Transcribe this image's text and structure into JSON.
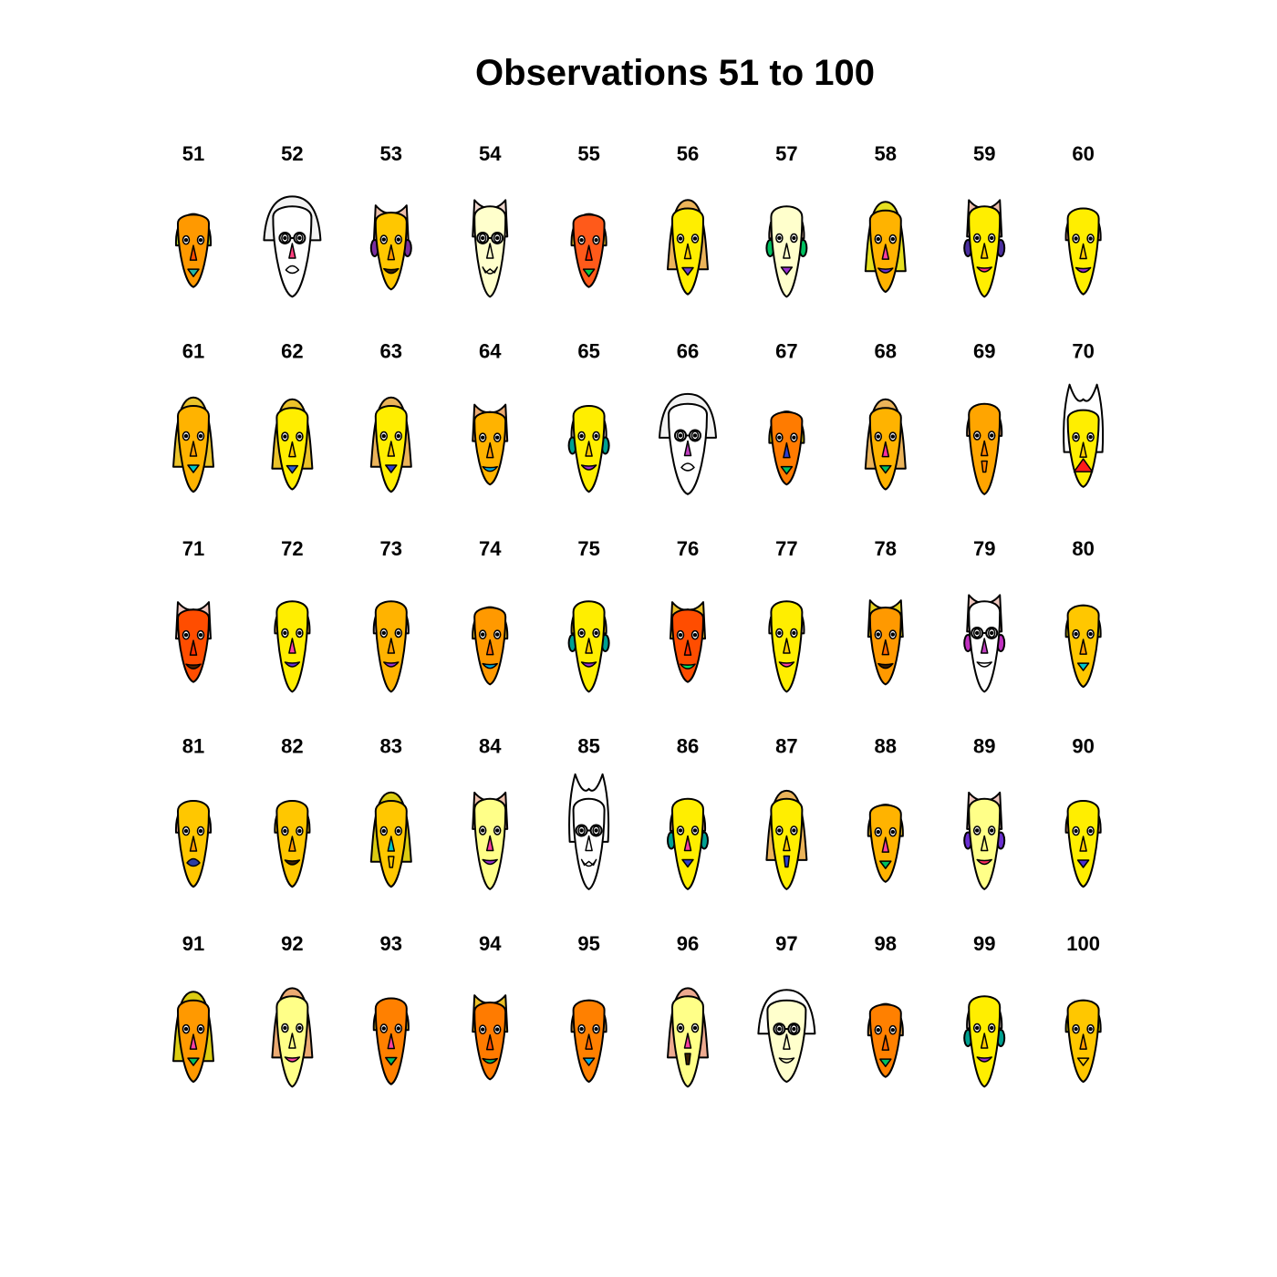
{
  "chart_data": {
    "type": "chernoff_faces",
    "title": "Observations 51 to 100",
    "columns": 10,
    "faces": [
      {
        "label": "51",
        "hair": "#b7d52a",
        "face": "#ff9900",
        "hair_style": "round",
        "head_h": 0.8,
        "nose": "#ff4d00",
        "mouth": "#22b8a8",
        "mouth_type": "tri",
        "glasses": false,
        "ears": false
      },
      {
        "label": "52",
        "hair": "#f2f2f2",
        "face": "#ffffff",
        "hair_style": "wide",
        "head_h": 1.0,
        "nose": "#ff3f7f",
        "mouth": "#ffffff",
        "mouth_type": "oval",
        "glasses": true,
        "ears": false
      },
      {
        "label": "53",
        "hair": "#edc0ac",
        "face": "#ffc700",
        "hair_style": "spiky",
        "head_h": 0.85,
        "nose": "#ff9900",
        "mouth": "#3a1f00",
        "mouth_type": "smile",
        "glasses": false,
        "ears": true,
        "ear": "#7b2fa0"
      },
      {
        "label": "54",
        "hair": "#f0d8d0",
        "face": "#ffffcc",
        "hair_style": "spiky",
        "head_h": 1.0,
        "nose": "#ffffcc",
        "mouth": "#ffffcc",
        "mouth_type": "teeth",
        "glasses": true,
        "ears": false
      },
      {
        "label": "55",
        "hair": "#ebbf27",
        "face": "#ff5a1a",
        "hair_style": "round",
        "head_h": 0.8,
        "nose": "#ff2e00",
        "mouth": "#00cc44",
        "mouth_type": "tri",
        "glasses": false,
        "ears": false
      },
      {
        "label": "56",
        "hair": "#ebb45a",
        "face": "#ffee00",
        "hair_style": "long",
        "head_h": 0.95,
        "nose": "#ffcc00",
        "mouth": "#6a40d0",
        "mouth_type": "tri",
        "glasses": false,
        "ears": false
      },
      {
        "label": "57",
        "hair": "#edc0ac",
        "face": "#ffffcc",
        "hair_style": "round",
        "head_h": 1.0,
        "nose": "#ffffcc",
        "mouth": "#9a2fd0",
        "mouth_type": "tri",
        "glasses": false,
        "ears": true,
        "ear": "#00c060"
      },
      {
        "label": "58",
        "hair": "#e6e020",
        "face": "#ffb300",
        "hair_style": "long",
        "head_h": 0.9,
        "nose": "#ff3f9f",
        "mouth": "#6a2fd0",
        "mouth_type": "smile",
        "glasses": false,
        "ears": false
      },
      {
        "label": "59",
        "hair": "#edc0ac",
        "face": "#ffee00",
        "hair_style": "spiky",
        "head_h": 1.0,
        "nose": "#ffc700",
        "mouth": "#ff2e80",
        "mouth_type": "smile",
        "glasses": false,
        "ears": true,
        "ear": "#4b2fa0"
      },
      {
        "label": "60",
        "hair": "#edaa90",
        "face": "#ffee00",
        "hair_style": "round",
        "head_h": 0.95,
        "nose": "#ffc700",
        "mouth": "#9a2fd0",
        "mouth_type": "smile",
        "glasses": false,
        "ears": false
      },
      {
        "label": "61",
        "hair": "#ebc32a",
        "face": "#ffb300",
        "hair_style": "long",
        "head_h": 0.95,
        "nose": "#ff9900",
        "mouth": "#00c8c8",
        "mouth_type": "tri",
        "glasses": false,
        "ears": false
      },
      {
        "label": "62",
        "hair": "#ebc32a",
        "face": "#ffee00",
        "hair_style": "long",
        "head_h": 0.9,
        "nose": "#ffc700",
        "mouth": "#2e5fd0",
        "mouth_type": "tri",
        "glasses": false,
        "ears": false
      },
      {
        "label": "63",
        "hair": "#ebb45a",
        "face": "#ffee00",
        "hair_style": "long",
        "head_h": 0.95,
        "nose": "#ffc700",
        "mouth": "#2e3fd0",
        "mouth_type": "tri",
        "glasses": false,
        "ears": false
      },
      {
        "label": "64",
        "hair": "#ebaa72",
        "face": "#ffb300",
        "hair_style": "spiky",
        "head_h": 0.8,
        "nose": "#ff9900",
        "mouth": "#00b0e0",
        "mouth_type": "smile",
        "glasses": false,
        "ears": false
      },
      {
        "label": "65",
        "hair": "#f0d8d0",
        "face": "#ffee00",
        "hair_style": "round",
        "head_h": 0.95,
        "nose": "#ffc700",
        "mouth": "#9a2fd0",
        "mouth_type": "smile",
        "glasses": false,
        "ears": true,
        "ear": "#00a090"
      },
      {
        "label": "66",
        "hair": "#f2f2f2",
        "face": "#ffffff",
        "hair_style": "wide",
        "head_h": 1.0,
        "nose": "#c03fc0",
        "mouth": "#ffffff",
        "mouth_type": "oval",
        "glasses": true,
        "ears": false
      },
      {
        "label": "67",
        "hair": "#dccc12",
        "face": "#ff7b00",
        "hair_style": "round",
        "head_h": 0.8,
        "nose": "#2e3fd0",
        "mouth": "#00c060",
        "mouth_type": "tri",
        "glasses": false,
        "ears": false
      },
      {
        "label": "68",
        "hair": "#ebb45a",
        "face": "#ffb300",
        "hair_style": "long",
        "head_h": 0.9,
        "nose": "#ff2e9f",
        "mouth": "#00c060",
        "mouth_type": "tri",
        "glasses": false,
        "ears": false
      },
      {
        "label": "69",
        "hair": "#ebaa72",
        "face": "#ffa500",
        "hair_style": "round",
        "head_h": 1.0,
        "nose": "#ff8000",
        "mouth": "#ff8000",
        "mouth_type": "line",
        "glasses": false,
        "ears": false
      },
      {
        "label": "70",
        "hair": "#ffffff",
        "face": "#ffee00",
        "hair_style": "horns",
        "head_h": 0.85,
        "nose": "#ffcc00",
        "mouth": "#ff1a1a",
        "mouth_type": "bigtri",
        "glasses": false,
        "ears": false
      },
      {
        "label": "71",
        "hair": "#f0c8c0",
        "face": "#ff4d00",
        "hair_style": "spiky",
        "head_h": 0.8,
        "nose": "#ff2e00",
        "mouth": "#4b1f00",
        "mouth_type": "smile",
        "glasses": false,
        "ears": false
      },
      {
        "label": "72",
        "hair": "#ebb45a",
        "face": "#ffee00",
        "hair_style": "round",
        "head_h": 1.0,
        "nose": "#ff40a0",
        "mouth": "#6a2fd0",
        "mouth_type": "smile",
        "glasses": false,
        "ears": false
      },
      {
        "label": "73",
        "hair": "#f0d8d0",
        "face": "#ffb300",
        "hair_style": "round",
        "head_h": 1.0,
        "nose": "#ff9900",
        "mouth": "#9a2fd0",
        "mouth_type": "smile",
        "glasses": false,
        "ears": false
      },
      {
        "label": "74",
        "hair": "#ebbf27",
        "face": "#ff9900",
        "hair_style": "round",
        "head_h": 0.85,
        "nose": "#ff6600",
        "mouth": "#00b0e0",
        "mouth_type": "smile",
        "glasses": false,
        "ears": false
      },
      {
        "label": "75",
        "hair": "#ebbf27",
        "face": "#ffee00",
        "hair_style": "round",
        "head_h": 1.0,
        "nose": "#ffc700",
        "mouth": "#9a2fd0",
        "mouth_type": "smile",
        "glasses": false,
        "ears": true,
        "ear": "#00a090"
      },
      {
        "label": "76",
        "hair": "#ebbf27",
        "face": "#ff4d00",
        "hair_style": "spiky",
        "head_h": 0.8,
        "nose": "#ff2e00",
        "mouth": "#00e060",
        "mouth_type": "smile",
        "glasses": false,
        "ears": false
      },
      {
        "label": "77",
        "hair": "#f0d8d0",
        "face": "#ffee00",
        "hair_style": "round",
        "head_h": 1.0,
        "nose": "#ffc700",
        "mouth": "#ff40a0",
        "mouth_type": "smile",
        "glasses": false,
        "ears": false
      },
      {
        "label": "78",
        "hair": "#e6d020",
        "face": "#ff9900",
        "hair_style": "spiky",
        "head_h": 0.85,
        "nose": "#ff6600",
        "mouth": "#3a1f00",
        "mouth_type": "smile",
        "glasses": false,
        "ears": false
      },
      {
        "label": "79",
        "hair": "#f0c8c0",
        "face": "#ffffff",
        "hair_style": "spiky",
        "head_h": 1.0,
        "nose": "#c03fc0",
        "mouth": "#ffffff",
        "mouth_type": "smile",
        "glasses": true,
        "ears": true,
        "ear": "#c030c0"
      },
      {
        "label": "80",
        "hair": "#dccc12",
        "face": "#ffc700",
        "hair_style": "round",
        "head_h": 0.9,
        "nose": "#ff9900",
        "mouth": "#00c8c8",
        "mouth_type": "tri",
        "glasses": false,
        "ears": false
      },
      {
        "label": "81",
        "hair": "#edaa90",
        "face": "#ffc700",
        "hair_style": "round",
        "head_h": 0.95,
        "nose": "#ff9900",
        "mouth": "#2e3fa0",
        "mouth_type": "oval",
        "glasses": false,
        "ears": false
      },
      {
        "label": "82",
        "hair": "#ebbf27",
        "face": "#ffc700",
        "hair_style": "round",
        "head_h": 0.95,
        "nose": "#ff9900",
        "mouth": "#3a1f00",
        "mouth_type": "smile",
        "glasses": false,
        "ears": false
      },
      {
        "label": "83",
        "hair": "#dccc12",
        "face": "#ffc700",
        "hair_style": "long",
        "head_h": 0.95,
        "nose": "#00c8c8",
        "mouth": "#ffc700",
        "mouth_type": "line",
        "glasses": false,
        "ears": false
      },
      {
        "label": "84",
        "hair": "#edc0ac",
        "face": "#ffff88",
        "hair_style": "spiky",
        "head_h": 1.0,
        "nose": "#ff40a0",
        "mouth": "#9a2fd0",
        "mouth_type": "smile",
        "glasses": false,
        "ears": false
      },
      {
        "label": "85",
        "hair": "#ffffff",
        "face": "#ffffff",
        "hair_style": "horns",
        "head_h": 1.0,
        "nose": "#ffffff",
        "mouth": "#ffffff",
        "mouth_type": "teeth",
        "glasses": true,
        "ears": false
      },
      {
        "label": "86",
        "hair": "#edaa90",
        "face": "#ffee00",
        "hair_style": "round",
        "head_h": 1.0,
        "nose": "#ff40a0",
        "mouth": "#2e3fd0",
        "mouth_type": "tri",
        "glasses": false,
        "ears": true,
        "ear": "#00a090"
      },
      {
        "label": "87",
        "hair": "#ebb45a",
        "face": "#ffee00",
        "hair_style": "long",
        "head_h": 1.0,
        "nose": "#ffc700",
        "mouth": "#2e3fd0",
        "mouth_type": "line",
        "glasses": false,
        "ears": false
      },
      {
        "label": "88",
        "hair": "#ebbf27",
        "face": "#ffb300",
        "hair_style": "round",
        "head_h": 0.85,
        "nose": "#ff40a0",
        "mouth": "#00c060",
        "mouth_type": "tri",
        "glasses": false,
        "ears": false
      },
      {
        "label": "89",
        "hair": "#f0c8c0",
        "face": "#ffff88",
        "hair_style": "spiky",
        "head_h": 1.0,
        "nose": "#ffff88",
        "mouth": "#ff2e60",
        "mouth_type": "smile",
        "glasses": false,
        "ears": true,
        "ear": "#6a2fd0"
      },
      {
        "label": "90",
        "hair": "#ebaa72",
        "face": "#ffee00",
        "hair_style": "round",
        "head_h": 0.95,
        "nose": "#ffc700",
        "mouth": "#4b2fd0",
        "mouth_type": "tri",
        "glasses": false,
        "ears": false
      },
      {
        "label": "91",
        "hair": "#dccc12",
        "face": "#ff9900",
        "hair_style": "long",
        "head_h": 0.9,
        "nose": "#ff40a0",
        "mouth": "#00c060",
        "mouth_type": "tri",
        "glasses": false,
        "ears": false
      },
      {
        "label": "92",
        "hair": "#ebaa72",
        "face": "#ffff88",
        "hair_style": "long",
        "head_h": 1.0,
        "nose": "#ffff88",
        "mouth": "#ff40a0",
        "mouth_type": "smile",
        "glasses": false,
        "ears": false
      },
      {
        "label": "93",
        "hair": "#ebbf27",
        "face": "#ff8000",
        "hair_style": "round",
        "head_h": 0.95,
        "nose": "#ff40a0",
        "mouth": "#00c060",
        "mouth_type": "tri",
        "glasses": false,
        "ears": false
      },
      {
        "label": "94",
        "hair": "#ebbf27",
        "face": "#ff7b00",
        "hair_style": "spiky",
        "head_h": 0.85,
        "nose": "#ff4d00",
        "mouth": "#00c060",
        "mouth_type": "smile",
        "glasses": false,
        "ears": false
      },
      {
        "label": "95",
        "hair": "#ebb45a",
        "face": "#ff8000",
        "hair_style": "round",
        "head_h": 0.9,
        "nose": "#ff6600",
        "mouth": "#00b0e0",
        "mouth_type": "tri",
        "glasses": false,
        "ears": false
      },
      {
        "label": "96",
        "hair": "#edaa90",
        "face": "#ffff88",
        "hair_style": "long",
        "head_h": 1.0,
        "nose": "#ff40a0",
        "mouth": "#3a1f00",
        "mouth_type": "line",
        "glasses": false,
        "ears": false
      },
      {
        "label": "97",
        "hair": "#ffffff",
        "face": "#ffffcc",
        "hair_style": "wide",
        "head_h": 0.9,
        "nose": "#ffffcc",
        "mouth": "#ffffcc",
        "mouth_type": "smile",
        "glasses": true,
        "ears": false
      },
      {
        "label": "98",
        "hair": "#ebaa50",
        "face": "#ff8000",
        "hair_style": "round",
        "head_h": 0.8,
        "nose": "#ff6600",
        "mouth": "#00c060",
        "mouth_type": "tri",
        "glasses": false,
        "ears": false
      },
      {
        "label": "99",
        "hair": "#f0d8d0",
        "face": "#ffee00",
        "hair_style": "round",
        "head_h": 1.0,
        "nose": "#ffc700",
        "mouth": "#9a2fd0",
        "mouth_type": "smile",
        "glasses": false,
        "ears": true,
        "ear": "#00a090"
      },
      {
        "label": "100",
        "hair": "#dccc12",
        "face": "#ffc700",
        "hair_style": "round",
        "head_h": 0.9,
        "nose": "#ff9900",
        "mouth": "#ffc700",
        "mouth_type": "tri",
        "glasses": false,
        "ears": false
      }
    ]
  }
}
